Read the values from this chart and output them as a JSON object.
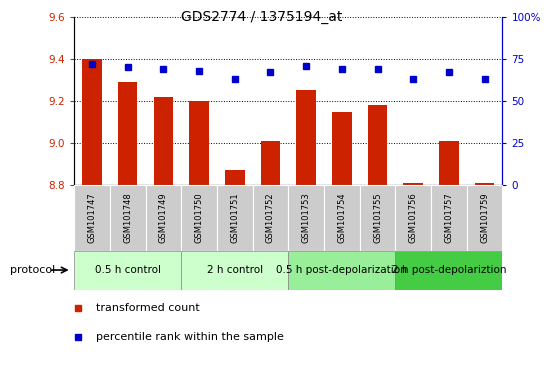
{
  "title": "GDS2774 / 1375194_at",
  "samples": [
    "GSM101747",
    "GSM101748",
    "GSM101749",
    "GSM101750",
    "GSM101751",
    "GSM101752",
    "GSM101753",
    "GSM101754",
    "GSM101755",
    "GSM101756",
    "GSM101757",
    "GSM101759"
  ],
  "bar_values": [
    9.4,
    9.29,
    9.22,
    9.2,
    8.87,
    9.01,
    9.25,
    9.15,
    9.18,
    8.81,
    9.01,
    8.81
  ],
  "dot_values": [
    72,
    70,
    69,
    68,
    63,
    67,
    71,
    69,
    69,
    63,
    67,
    63
  ],
  "ylim_left": [
    8.8,
    9.6
  ],
  "ylim_right": [
    0,
    100
  ],
  "yticks_left": [
    8.8,
    9.0,
    9.2,
    9.4,
    9.6
  ],
  "yticks_right": [
    0,
    25,
    50,
    75,
    100
  ],
  "bar_color": "#cc2200",
  "dot_color": "#0000cc",
  "bar_bottom": 8.8,
  "protocols": [
    {
      "label": "0.5 h control",
      "start": 0,
      "end": 3,
      "color": "#ccffcc"
    },
    {
      "label": "2 h control",
      "start": 3,
      "end": 6,
      "color": "#ccffcc"
    },
    {
      "label": "0.5 h post-depolarization",
      "start": 6,
      "end": 9,
      "color": "#99ee99"
    },
    {
      "label": "2 h post-depolariztion",
      "start": 9,
      "end": 12,
      "color": "#44cc44"
    }
  ],
  "legend_items": [
    {
      "label": "transformed count",
      "color": "#cc2200"
    },
    {
      "label": "percentile rank within the sample",
      "color": "#0000cc"
    }
  ],
  "protocol_label": "protocol",
  "title_fontsize": 10,
  "tick_fontsize": 7.5,
  "sample_fontsize": 6.0,
  "proto_fontsize": 7.5,
  "legend_fontsize": 8
}
